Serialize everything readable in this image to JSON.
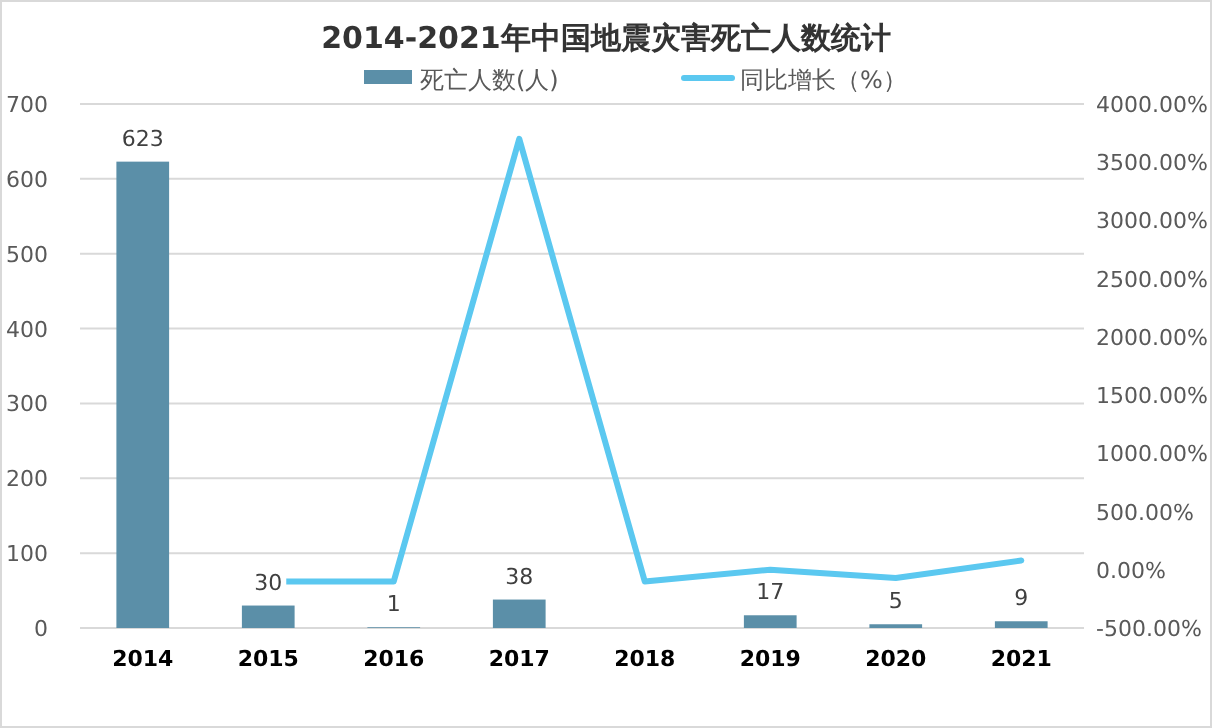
{
  "chart_data": {
    "type": "bar",
    "title": "2014-2021年中国地震灾害死亡人数统计",
    "categories": [
      "2014",
      "2015",
      "2016",
      "2017",
      "2018",
      "2019",
      "2020",
      "2021"
    ],
    "series": [
      {
        "name": "死亡人数(人)",
        "color": "#5b8fa8",
        "values": [
          623,
          30,
          1,
          38,
          0,
          17,
          5,
          9
        ],
        "value_labels": [
          "623",
          "30",
          "1",
          "38",
          null,
          "17",
          "5",
          "9"
        ]
      },
      {
        "name": "同比增长（%）",
        "type": "line",
        "axis": "y2",
        "color": "#5bc8f0",
        "values": [
          null,
          -100,
          -100,
          3700,
          -100,
          0,
          -70,
          80
        ]
      }
    ],
    "ylim": [
      0,
      700
    ],
    "yticks": [
      0,
      100,
      200,
      300,
      400,
      500,
      600,
      700
    ],
    "y2lim": [
      -500,
      4000
    ],
    "y2ticks": [
      {
        "value": -500,
        "label": "-500.00%"
      },
      {
        "value": 0,
        "label": "0.00%"
      },
      {
        "value": 500,
        "label": "500.00%"
      },
      {
        "value": 1000,
        "label": "1000.00%"
      },
      {
        "value": 1500,
        "label": "1500.00%"
      },
      {
        "value": 2000,
        "label": "2000.00%"
      },
      {
        "value": 2500,
        "label": "2500.00%"
      },
      {
        "value": 3000,
        "label": "3000.00%"
      },
      {
        "value": 3500,
        "label": "3500.00%"
      },
      {
        "value": 4000,
        "label": "4000.00%"
      }
    ],
    "grid": "y",
    "legend": "top"
  }
}
